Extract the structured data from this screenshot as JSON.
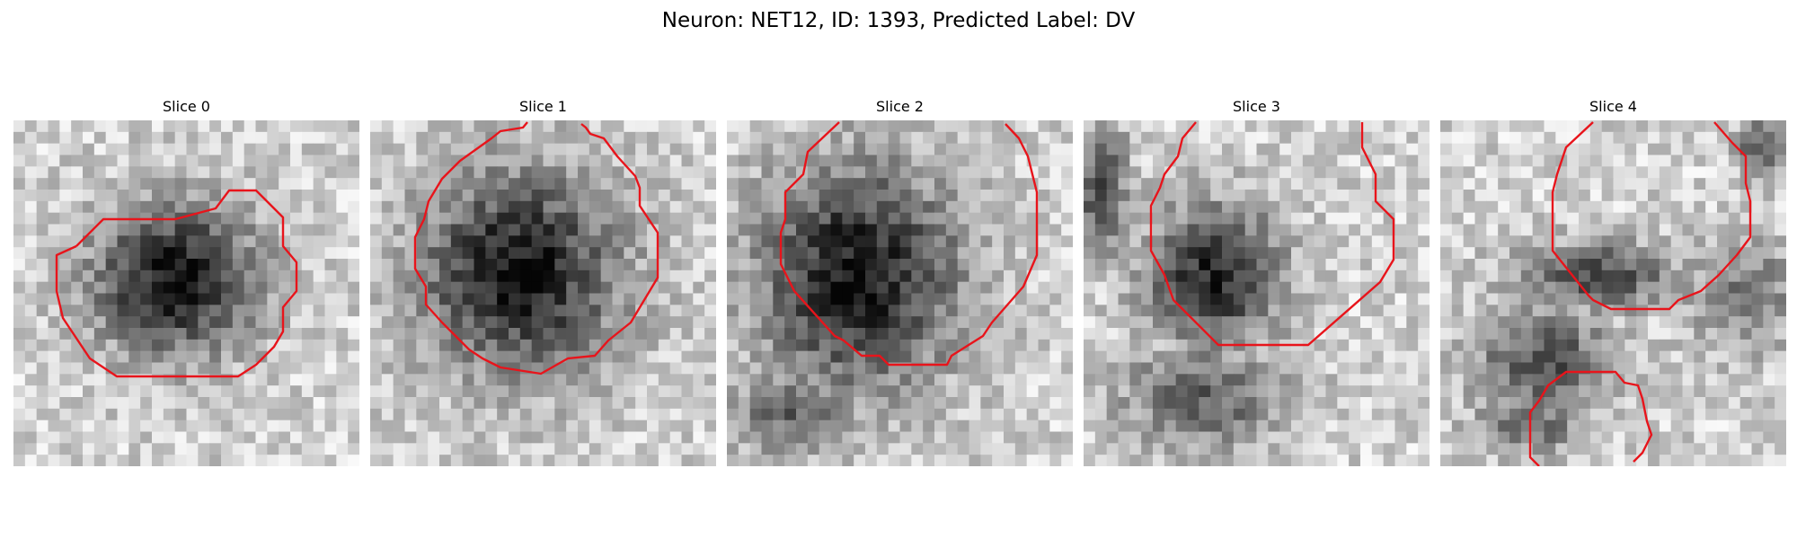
{
  "figure": {
    "title": "Neuron: NET12, ID: 1393, Predicted Label: DV"
  },
  "panels": [
    {
      "title": "Slice 0"
    },
    {
      "title": "Slice 1"
    },
    {
      "title": "Slice 2"
    },
    {
      "title": "Slice 3"
    },
    {
      "title": "Slice 4"
    }
  ],
  "colors": {
    "contour": "#e8141b",
    "background": "#ffffff"
  }
}
